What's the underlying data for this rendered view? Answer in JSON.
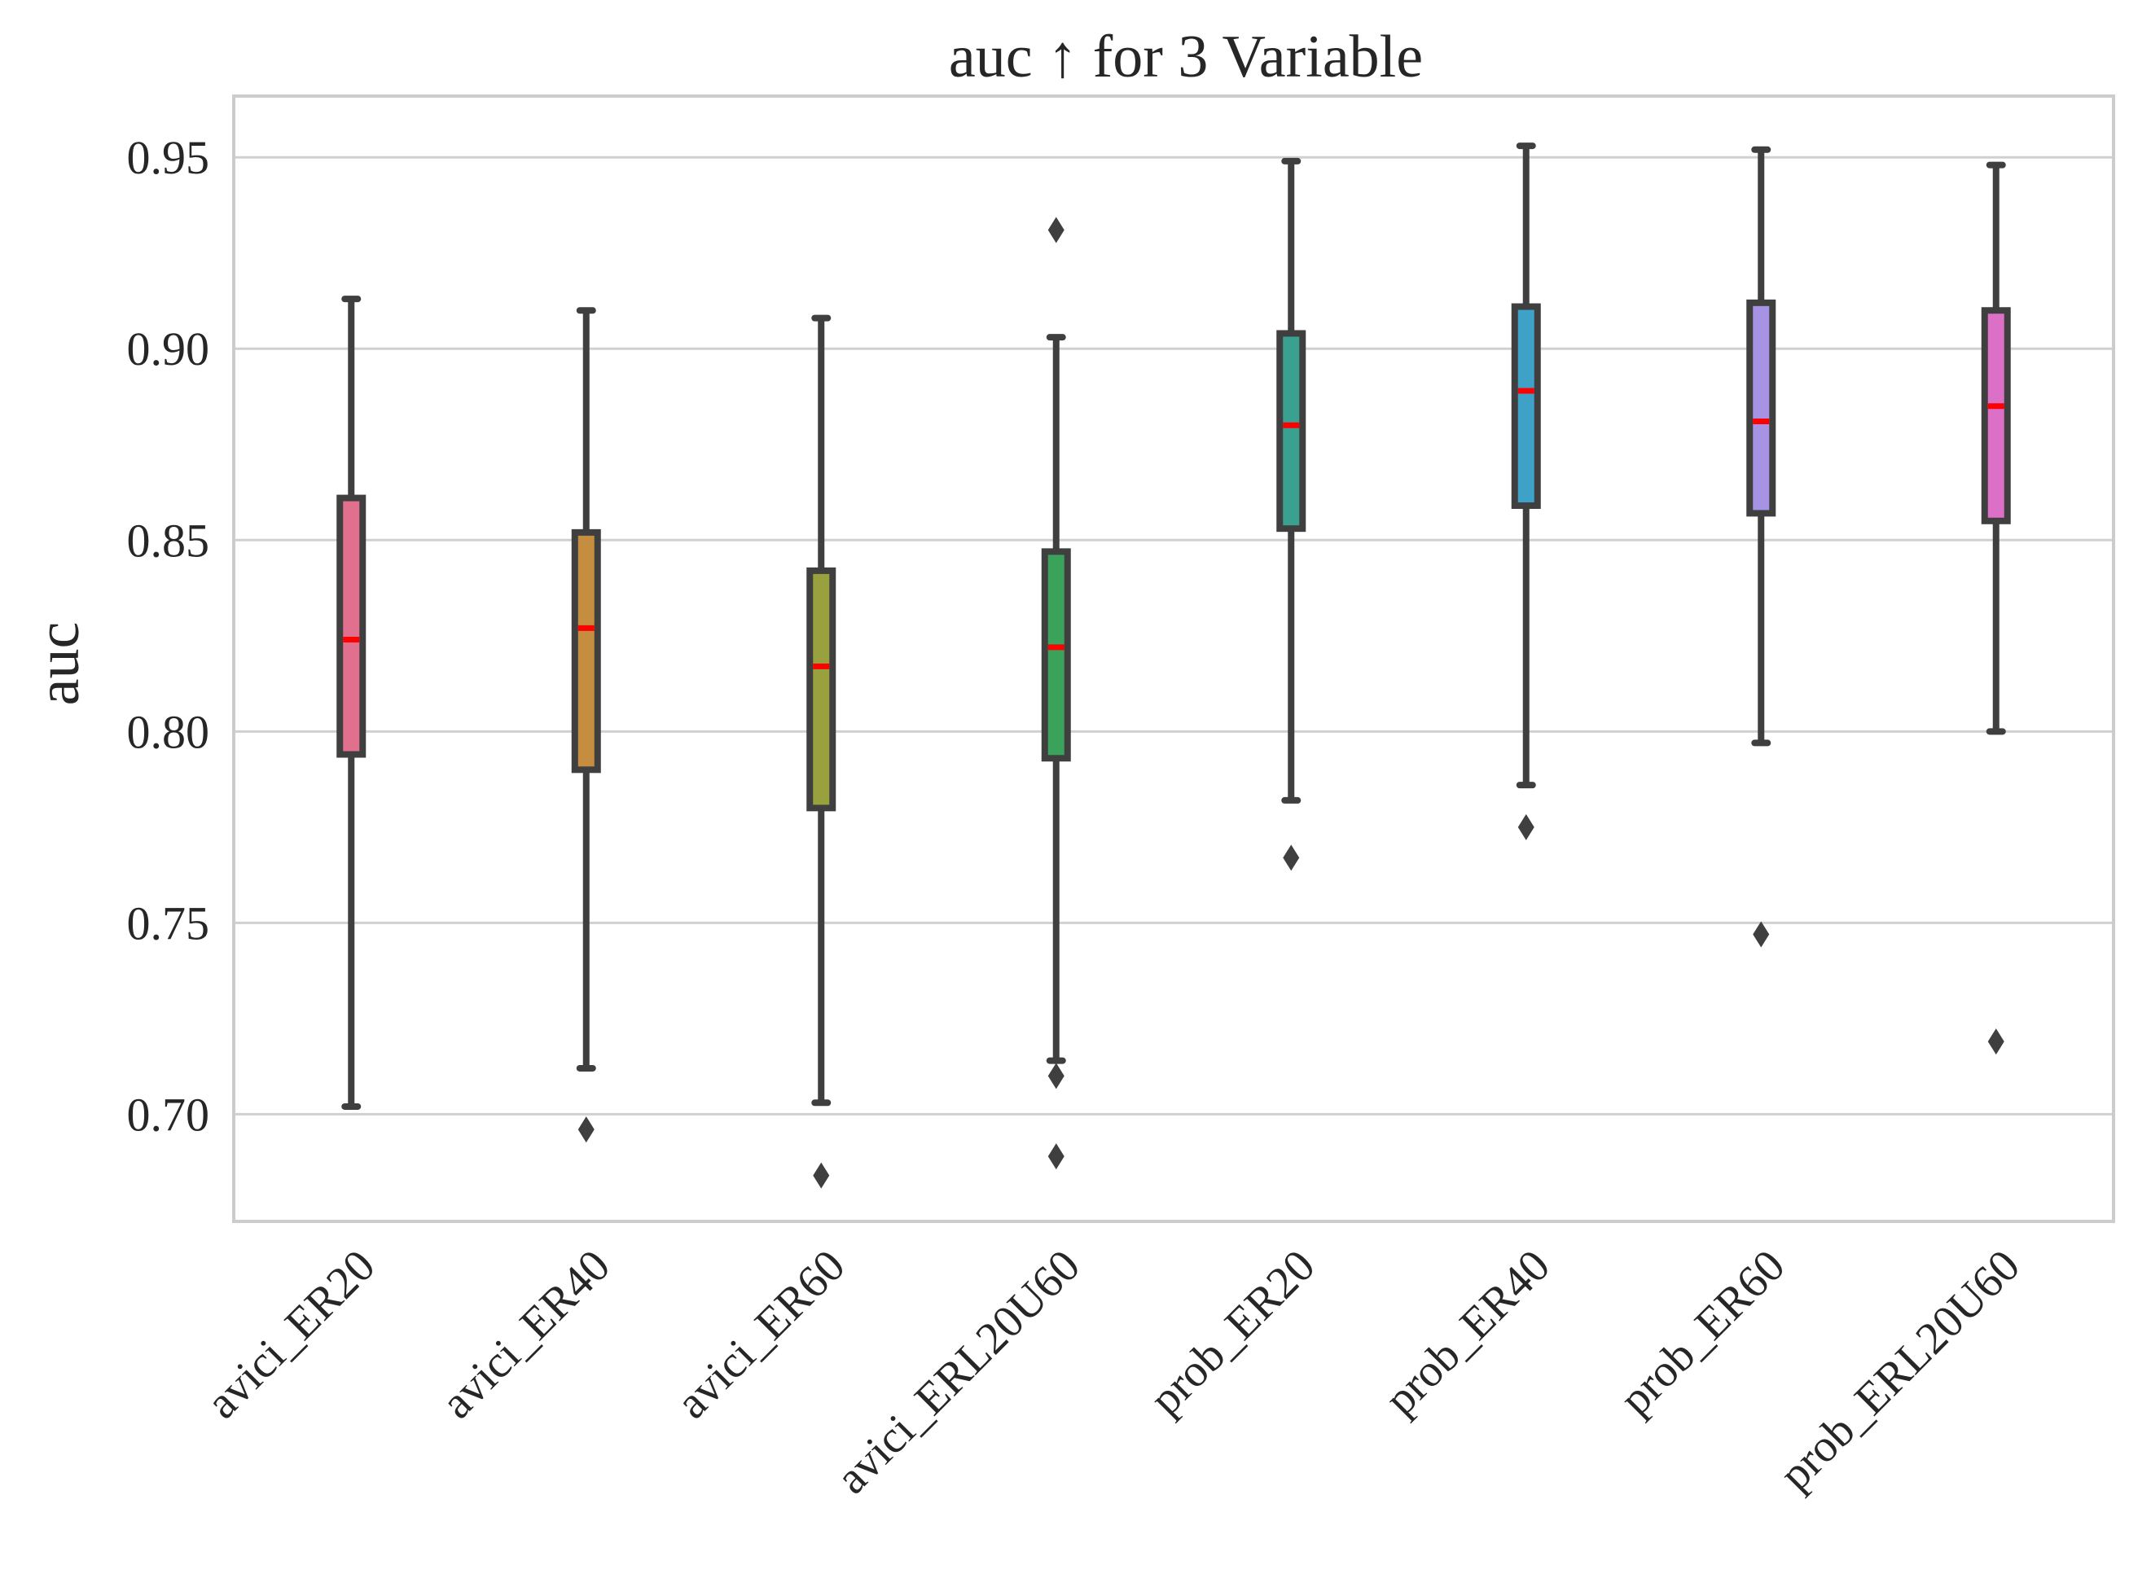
{
  "chart_data": {
    "type": "box",
    "title": "auc ↑ for 3 Variable",
    "xlabel": "",
    "ylabel": "auc",
    "ylim": [
      0.672,
      0.966
    ],
    "yticks": [
      0.7,
      0.75,
      0.8,
      0.85,
      0.9,
      0.95
    ],
    "ytick_labels": [
      "0.70",
      "0.75",
      "0.80",
      "0.85",
      "0.90",
      "0.95"
    ],
    "grid": "horizontal",
    "legend": "none",
    "categories": [
      "avici_ER20",
      "avici_ER40",
      "avici_ER60",
      "avici_ERL20U60",
      "prob_ER20",
      "prob_ER40",
      "prob_ER60",
      "prob_ERL20U60"
    ],
    "boxes": [
      {
        "category": "avici_ER20",
        "whisker_low": 0.702,
        "q1": 0.794,
        "median": 0.824,
        "q3": 0.861,
        "whisker_high": 0.913,
        "outliers": [],
        "color": "#e0708d"
      },
      {
        "category": "avici_ER40",
        "whisker_low": 0.712,
        "q1": 0.79,
        "median": 0.827,
        "q3": 0.852,
        "whisker_high": 0.91,
        "outliers": [
          0.696
        ],
        "color": "#c48d3f"
      },
      {
        "category": "avici_ER60",
        "whisker_low": 0.703,
        "q1": 0.78,
        "median": 0.817,
        "q3": 0.842,
        "whisker_high": 0.908,
        "outliers": [
          0.684
        ],
        "color": "#99a03e"
      },
      {
        "category": "avici_ERL20U60",
        "whisker_low": 0.714,
        "q1": 0.793,
        "median": 0.822,
        "q3": 0.847,
        "whisker_high": 0.903,
        "outliers": [
          0.931,
          0.71,
          0.689
        ],
        "color": "#3ba25c"
      },
      {
        "category": "prob_ER20",
        "whisker_low": 0.782,
        "q1": 0.853,
        "median": 0.88,
        "q3": 0.904,
        "whisker_high": 0.949,
        "outliers": [
          0.767
        ],
        "color": "#3aa191"
      },
      {
        "category": "prob_ER40",
        "whisker_low": 0.786,
        "q1": 0.859,
        "median": 0.889,
        "q3": 0.911,
        "whisker_high": 0.953,
        "outliers": [
          0.775
        ],
        "color": "#3ea1c8"
      },
      {
        "category": "prob_ER60",
        "whisker_low": 0.797,
        "q1": 0.857,
        "median": 0.881,
        "q3": 0.912,
        "whisker_high": 0.952,
        "outliers": [
          0.747
        ],
        "color": "#a693e4"
      },
      {
        "category": "prob_ERL20U60",
        "whisker_low": 0.8,
        "q1": 0.855,
        "median": 0.885,
        "q3": 0.91,
        "whisker_high": 0.948,
        "outliers": [
          0.719
        ],
        "color": "#dc6fc6"
      }
    ],
    "colors": {
      "median": "#ff0000",
      "box_edge": "#3f3f3f",
      "grid": "#d0d0d0",
      "frame": "#cccccc"
    }
  }
}
